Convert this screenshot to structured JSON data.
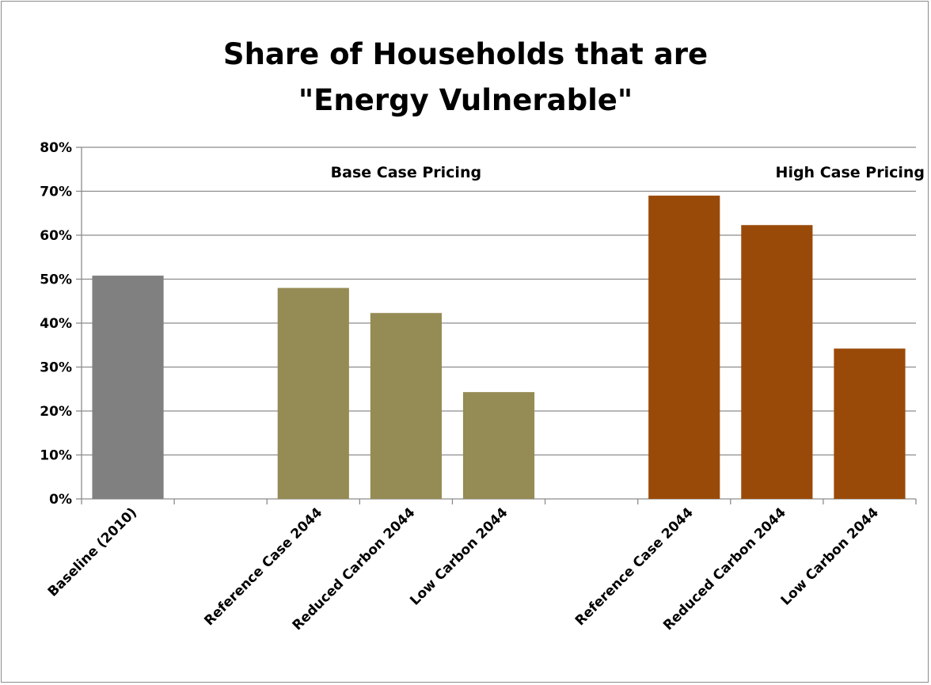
{
  "chart_data": {
    "type": "bar",
    "title_lines": [
      "Share of Households that are",
      "\"Energy Vulnerable\""
    ],
    "categories": [
      "Baseline (2010)",
      "",
      "Reference Case 2044",
      "Reduced Carbon 2044",
      "Low Carbon 2044",
      "",
      "Reference Case 2044",
      "Reduced Carbon 2044",
      "Low Carbon 2044"
    ],
    "values": [
      0.508,
      null,
      0.48,
      0.423,
      0.243,
      null,
      0.69,
      0.623,
      0.342
    ],
    "bar_colors": [
      "#808080",
      null,
      "#958b55",
      "#958b55",
      "#958b55",
      null,
      "#9a4a08",
      "#9a4a08",
      "#9a4a08"
    ],
    "ylim": [
      0,
      0.8
    ],
    "yticks": [
      {
        "value": 0.0,
        "label": "0%"
      },
      {
        "value": 0.1,
        "label": "10%"
      },
      {
        "value": 0.2,
        "label": "20%"
      },
      {
        "value": 0.3,
        "label": "30%"
      },
      {
        "value": 0.4,
        "label": "40%"
      },
      {
        "value": 0.5,
        "label": "50%"
      },
      {
        "value": 0.6,
        "label": "60%"
      },
      {
        "value": 0.7,
        "label": "70%"
      },
      {
        "value": 0.8,
        "label": "80%"
      }
    ],
    "annotations": [
      {
        "text": "Base Case Pricing",
        "category_index": 3
      },
      {
        "text": "High Case Pricing",
        "category_index": 8
      }
    ],
    "grid": true,
    "legend": "none"
  },
  "colors": {
    "grid": "#8c8c8c",
    "axis": "#8c8c8c"
  }
}
